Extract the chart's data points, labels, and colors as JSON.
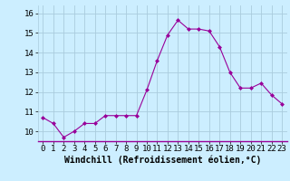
{
  "x": [
    0,
    1,
    2,
    3,
    4,
    5,
    6,
    7,
    8,
    9,
    10,
    11,
    12,
    13,
    14,
    15,
    16,
    17,
    18,
    19,
    20,
    21,
    22,
    23
  ],
  "y": [
    10.7,
    10.4,
    9.7,
    10.0,
    10.4,
    10.4,
    10.8,
    10.8,
    10.8,
    10.8,
    12.1,
    13.6,
    14.9,
    15.65,
    15.2,
    15.2,
    15.1,
    14.3,
    13.0,
    12.2,
    12.2,
    12.45,
    11.85,
    11.4
  ],
  "line_color": "#990099",
  "marker": "D",
  "marker_size": 2,
  "bg_color": "#cceeff",
  "grid_color": "#aaccdd",
  "xlabel": "Windchill (Refroidissement éolien,°C)",
  "ylim": [
    9.5,
    16.4
  ],
  "xlim": [
    -0.5,
    23.5
  ],
  "yticks": [
    10,
    11,
    12,
    13,
    14,
    15,
    16
  ],
  "xticks": [
    0,
    1,
    2,
    3,
    4,
    5,
    6,
    7,
    8,
    9,
    10,
    11,
    12,
    13,
    14,
    15,
    16,
    17,
    18,
    19,
    20,
    21,
    22,
    23
  ],
  "tick_label_fontsize": 6.5,
  "xlabel_fontsize": 7
}
